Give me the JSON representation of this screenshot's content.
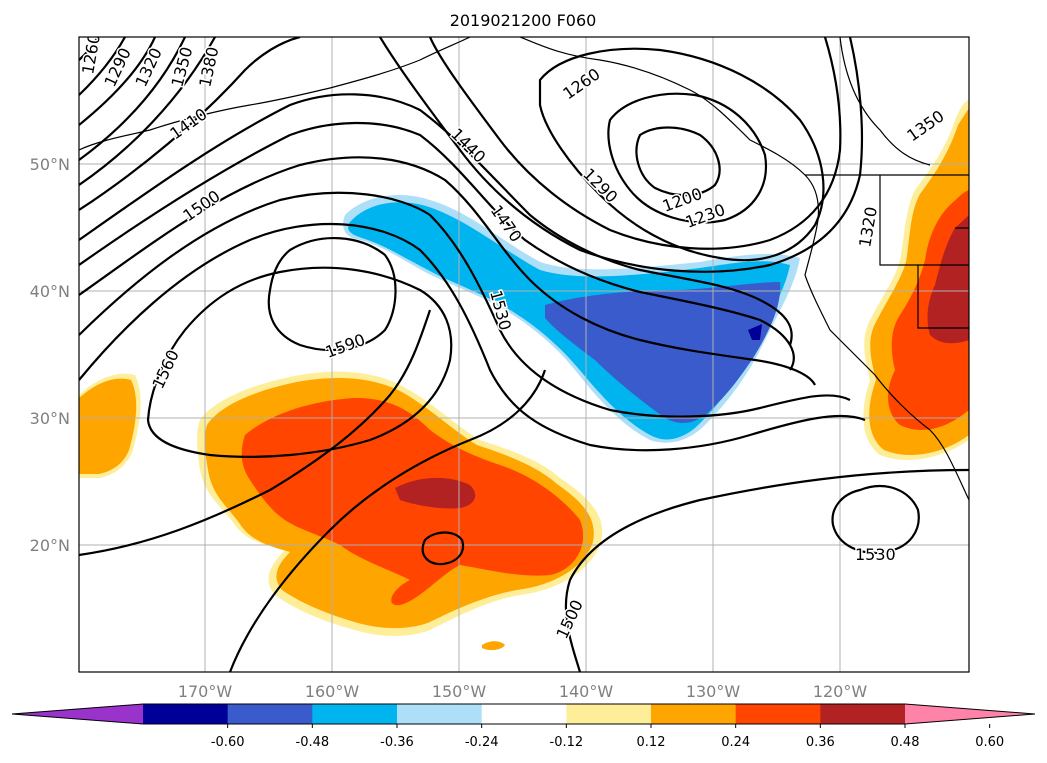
{
  "title": "2019021200 F060",
  "lat_labels": [
    "50°N",
    "40°N",
    "30°N",
    "20°N"
  ],
  "lon_labels": [
    "170°W",
    "160°W",
    "150°W",
    "140°W",
    "130°W",
    "120°W"
  ],
  "colorbar": {
    "ticks": [
      "-0.60",
      "-0.48",
      "-0.36",
      "-0.24",
      "-0.12",
      "0.12",
      "0.24",
      "0.36",
      "0.48",
      "0.60"
    ],
    "colors": [
      "#9933cc",
      "#000099",
      "#3a5bcc",
      "#00b4f0",
      "#aedff8",
      "#ffffff",
      "#ffee99",
      "#ffa500",
      "#ff4500",
      "#b22222",
      "#ff82a8"
    ]
  },
  "contour_labels": {
    "c1260a": "1260",
    "c1290a": "1290",
    "c1320a": "1320",
    "c1350a": "1350",
    "c1380": "1380",
    "c1410": "1410",
    "c1500a": "1500",
    "c1440": "1440",
    "c1470": "1470",
    "c1260b": "1260",
    "c1290b": "1290",
    "c1200": "1200",
    "c1230": "1230",
    "c1320b": "1320",
    "c1350b": "1350",
    "c1530a": "1530",
    "c1590": "1590",
    "c1560": "1560",
    "c1530b": "1530",
    "c1500b": "1500"
  }
}
